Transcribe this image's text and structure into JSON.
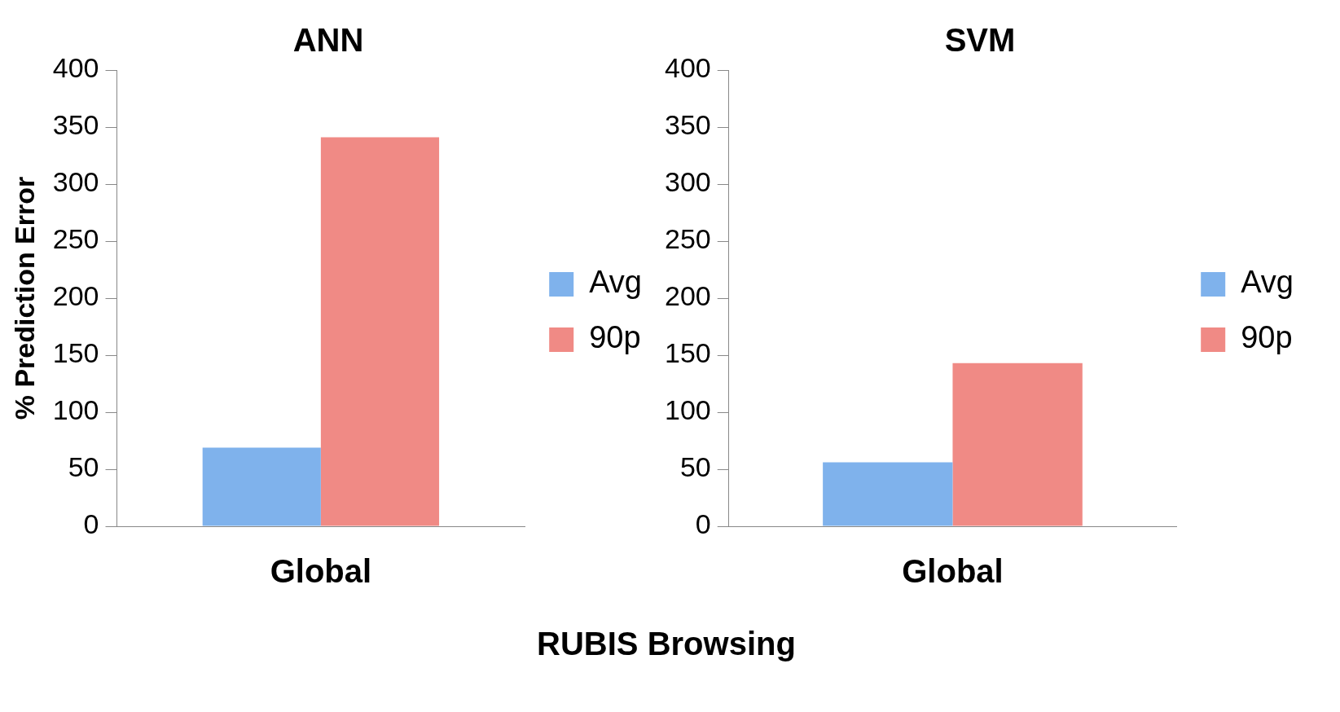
{
  "chart_data": [
    {
      "type": "bar",
      "title": "ANN",
      "ylabel": "% Prediction Error",
      "xlabel": "RUBIS Browsing",
      "categories": [
        "Global"
      ],
      "series": [
        {
          "name": "Avg",
          "color": "#7fb2ec",
          "values": [
            69
          ]
        },
        {
          "name": "90p",
          "color": "#f08a85",
          "values": [
            341
          ]
        }
      ],
      "ylim": [
        0,
        400
      ],
      "yticks": [
        0,
        50,
        100,
        150,
        200,
        250,
        300,
        350,
        400
      ],
      "grid": false,
      "legend": "right"
    },
    {
      "type": "bar",
      "title": "SVM",
      "categories": [
        "Global"
      ],
      "series": [
        {
          "name": "Avg",
          "color": "#7fb2ec",
          "values": [
            56
          ]
        },
        {
          "name": "90p",
          "color": "#f08a85",
          "values": [
            143
          ]
        }
      ],
      "ylim": [
        0,
        400
      ],
      "yticks": [
        0,
        50,
        100,
        150,
        200,
        250,
        300,
        350,
        400
      ],
      "grid": false,
      "legend": "right"
    }
  ]
}
